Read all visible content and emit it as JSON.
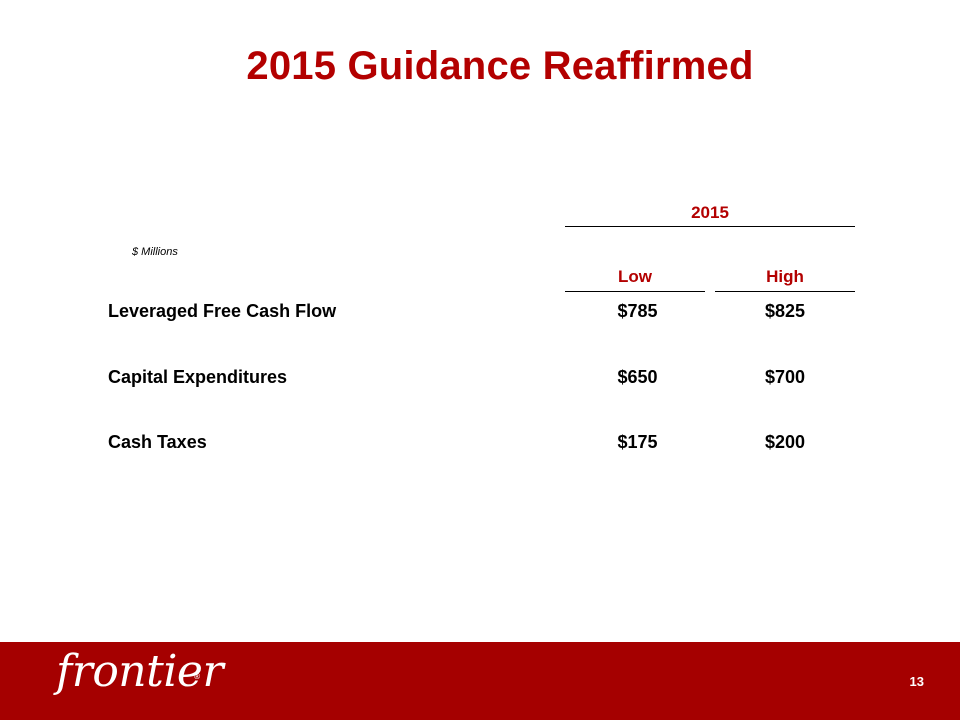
{
  "slide": {
    "title": "2015 Guidance Reaffirmed",
    "units_note": "$ Millions",
    "page_number": "13"
  },
  "table": {
    "group_header": "2015",
    "columns": [
      "Low",
      "High"
    ],
    "rows": [
      {
        "label": "Leveraged Free Cash Flow",
        "low": "$785",
        "high": "$825"
      },
      {
        "label": "Capital Expenditures",
        "low": "$650",
        "high": "$700"
      },
      {
        "label": "Cash Taxes",
        "low": "$175",
        "high": "$200"
      }
    ]
  },
  "footer": {
    "logo_text": "frontier",
    "logo_mark": "®"
  },
  "colors": {
    "accent_red": "#b30000",
    "footer_red": "#a50000",
    "text": "#000000"
  }
}
